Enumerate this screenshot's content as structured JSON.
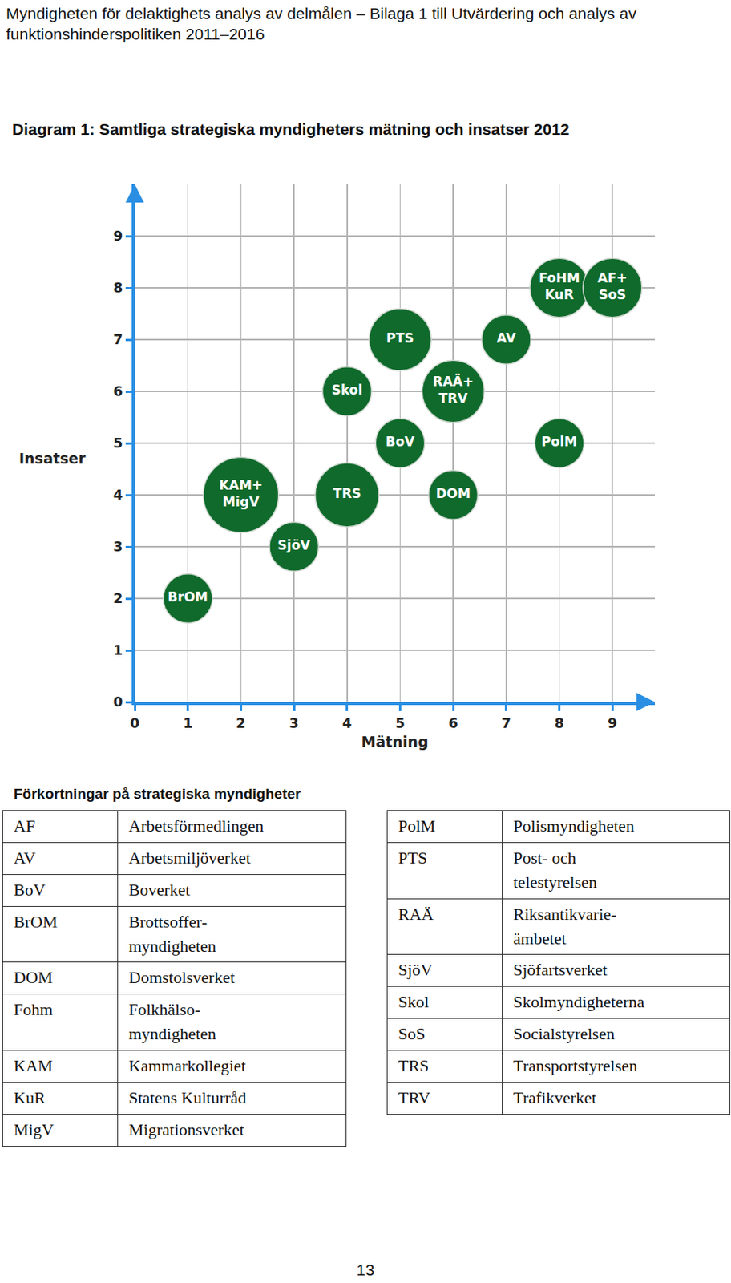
{
  "header": "Myndigheten för delaktighets analys av delmålen – Bilaga 1 till Utvärdering och analys av funktionshinderspolitiken 2011–2016",
  "chart_data": {
    "type": "bubble",
    "title": "Diagram 1: Samtliga strategiska myndigheters mätning och insatser 2012",
    "x_label": "Mätning",
    "y_label": "Insatser",
    "labels": [
      "BrOM",
      "KAM+\nMigV",
      "SjöV",
      "Skol",
      "TRS",
      "PTS",
      "BoV",
      "RAÄ+\nTRV",
      "DOM",
      "AV",
      "FoHM\nKuR",
      "PolM",
      "AF+\nSoS"
    ],
    "x": [
      1,
      2,
      3,
      4,
      4,
      5,
      5,
      6,
      6,
      7,
      8,
      8,
      9
    ],
    "y": [
      2,
      4,
      3,
      6,
      4,
      7,
      5,
      6,
      4,
      7,
      8,
      5,
      8
    ],
    "sizes": [
      3,
      4.6,
      3,
      3,
      3.9,
      3.8,
      3,
      3.8,
      3,
      3,
      3.6,
      3,
      3.6
    ],
    "color": "#0f6a2c",
    "xlim": [
      0,
      9.8
    ],
    "ylim": [
      0,
      10
    ],
    "xticks": [
      0,
      1,
      2,
      3,
      4,
      5,
      6,
      7,
      8,
      9
    ],
    "yticks": [
      0,
      1,
      2,
      3,
      4,
      5,
      6,
      7,
      8,
      9
    ],
    "grid": true
  },
  "abbreviations": {
    "title": "Förkortningar på strategiska myndigheter",
    "left": [
      [
        "AF",
        "Arbetsförmedlingen"
      ],
      [
        "AV",
        "Arbetsmiljöverket"
      ],
      [
        "BoV",
        "Boverket"
      ],
      [
        "BrOM",
        "Brottsoffer-\nmyndigheten"
      ],
      [
        "DOM",
        "Domstolsverket"
      ],
      [
        "Fohm",
        "Folkhälso-\nmyndigheten"
      ],
      [
        "KAM",
        "Kammarkollegiet"
      ],
      [
        "KuR",
        "Statens Kulturråd"
      ],
      [
        "MigV",
        "Migrationsverket"
      ]
    ],
    "right": [
      [
        "PolM",
        "Polismyndigheten"
      ],
      [
        "PTS",
        "Post- och\ntelestyrelsen"
      ],
      [
        "RAÄ",
        "Riksantikvarie-\nämbetet"
      ],
      [
        "SjöV",
        "Sjöfartsverket"
      ],
      [
        "Skol",
        "Skolmyndigheterna"
      ],
      [
        "SoS",
        "Socialstyrelsen"
      ],
      [
        "TRS",
        "Transportstyrelsen"
      ],
      [
        "TRV",
        "Trafikverket"
      ]
    ]
  },
  "page_number": "13"
}
